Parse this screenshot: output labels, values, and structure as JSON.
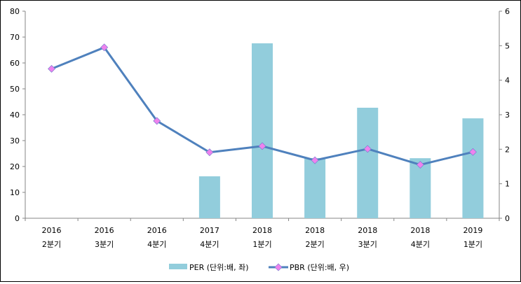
{
  "chart_data": {
    "type": "bar+line",
    "categories": [
      [
        "2016",
        "2분기"
      ],
      [
        "2016",
        "3분기"
      ],
      [
        "2016",
        "4분기"
      ],
      [
        "2017",
        "4분기"
      ],
      [
        "2018",
        "1분기"
      ],
      [
        "2018",
        "2분기"
      ],
      [
        "2018",
        "3분기"
      ],
      [
        "2018",
        "4분기"
      ],
      [
        "2019",
        "1분기"
      ]
    ],
    "series": [
      {
        "name": "PER (단위:배, 좌)",
        "type": "bar",
        "axis": "left",
        "color": "#92CDDC",
        "values": [
          null,
          null,
          null,
          16.2,
          67.6,
          23.2,
          42.7,
          23.2,
          38.6
        ]
      },
      {
        "name": "PBR (단위:배, 우)",
        "type": "line",
        "axis": "right",
        "color": "#4F81BD",
        "marker_color": "#EE82EE",
        "values": [
          4.33,
          4.95,
          2.82,
          1.91,
          2.09,
          1.68,
          2.01,
          1.55,
          1.92
        ]
      }
    ],
    "left_axis": {
      "min": 0,
      "max": 80,
      "ticks": [
        "0",
        "10",
        "20",
        "30",
        "40",
        "50",
        "60",
        "70",
        "80"
      ]
    },
    "right_axis": {
      "min": 0,
      "max": 6,
      "ticks": [
        "0",
        "1",
        "2",
        "3",
        "4",
        "5",
        "6"
      ]
    },
    "grid": false,
    "legend_position": "bottom"
  }
}
